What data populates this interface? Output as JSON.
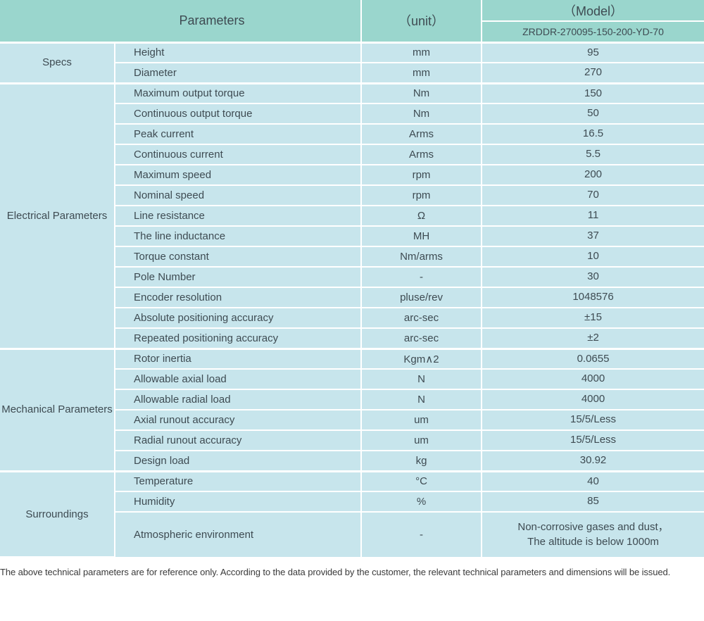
{
  "header": {
    "parameters_label": "Parameters",
    "unit_label": "（unit）",
    "model_label": "（Model）",
    "model_value": "ZRDDR-270095-150-200-YD-70"
  },
  "sections": [
    {
      "name": "Specs",
      "rows": [
        {
          "param": "Height",
          "unit": "mm",
          "value": "95"
        },
        {
          "param": "Diameter",
          "unit": "mm",
          "value": "270"
        }
      ]
    },
    {
      "name": "Electrical Parameters",
      "rows": [
        {
          "param": "Maximum output torque",
          "unit": "Nm",
          "value": "150"
        },
        {
          "param": "Continuous output torque",
          "unit": "Nm",
          "value": "50"
        },
        {
          "param": "Peak current",
          "unit": "Arms",
          "value": "16.5"
        },
        {
          "param": "Continuous current",
          "unit": "Arms",
          "value": "5.5"
        },
        {
          "param": "Maximum speed",
          "unit": "rpm",
          "value": "200"
        },
        {
          "param": "Nominal speed",
          "unit": "rpm",
          "value": "70"
        },
        {
          "param": "Line resistance",
          "unit": "Ω",
          "value": "11"
        },
        {
          "param": "The line inductance",
          "unit": "MH",
          "value": "37"
        },
        {
          "param": "Torque constant",
          "unit": "Nm/arms",
          "value": "10"
        },
        {
          "param": "Pole Number",
          "unit": "-",
          "value": "30"
        },
        {
          "param": "Encoder resolution",
          "unit": "pluse/rev",
          "value": "1048576"
        },
        {
          "param": "Absolute positioning accuracy",
          "unit": "arc-sec",
          "value": "±15"
        },
        {
          "param": "Repeated positioning accuracy",
          "unit": "arc-sec",
          "value": "±2"
        }
      ]
    },
    {
      "name": "Mechanical Parameters",
      "rows": [
        {
          "param": "Rotor inertia",
          "unit": "Kgm∧2",
          "value": "0.0655"
        },
        {
          "param": "Allowable axial load",
          "unit": "N",
          "value": "4000"
        },
        {
          "param": "Allowable radial load",
          "unit": "N",
          "value": "4000"
        },
        {
          "param": "Axial runout accuracy",
          "unit": "um",
          "value": "15/5/Less"
        },
        {
          "param": "Radial runout accuracy",
          "unit": "um",
          "value": "15/5/Less"
        },
        {
          "param": "Design load",
          "unit": "kg",
          "value": "30.92"
        }
      ]
    },
    {
      "name": "Surroundings",
      "rows": [
        {
          "param": "Temperature",
          "unit": "°C",
          "value": "40"
        },
        {
          "param": "Humidity",
          "unit": "%",
          "value": "85"
        },
        {
          "param": "Atmospheric environment",
          "unit": "-",
          "value": "Non-corrosive gases and dust，\nThe altitude is below 1000m"
        }
      ]
    }
  ],
  "footer": {
    "note": "The above technical parameters are for reference only. According to the data provided by the customer, the relevant technical parameters and dimensions will be issued."
  },
  "colors": {
    "header_bg": "#9ad6cd",
    "row_bg": "#c7e5ec",
    "text": "#3e4b52"
  }
}
